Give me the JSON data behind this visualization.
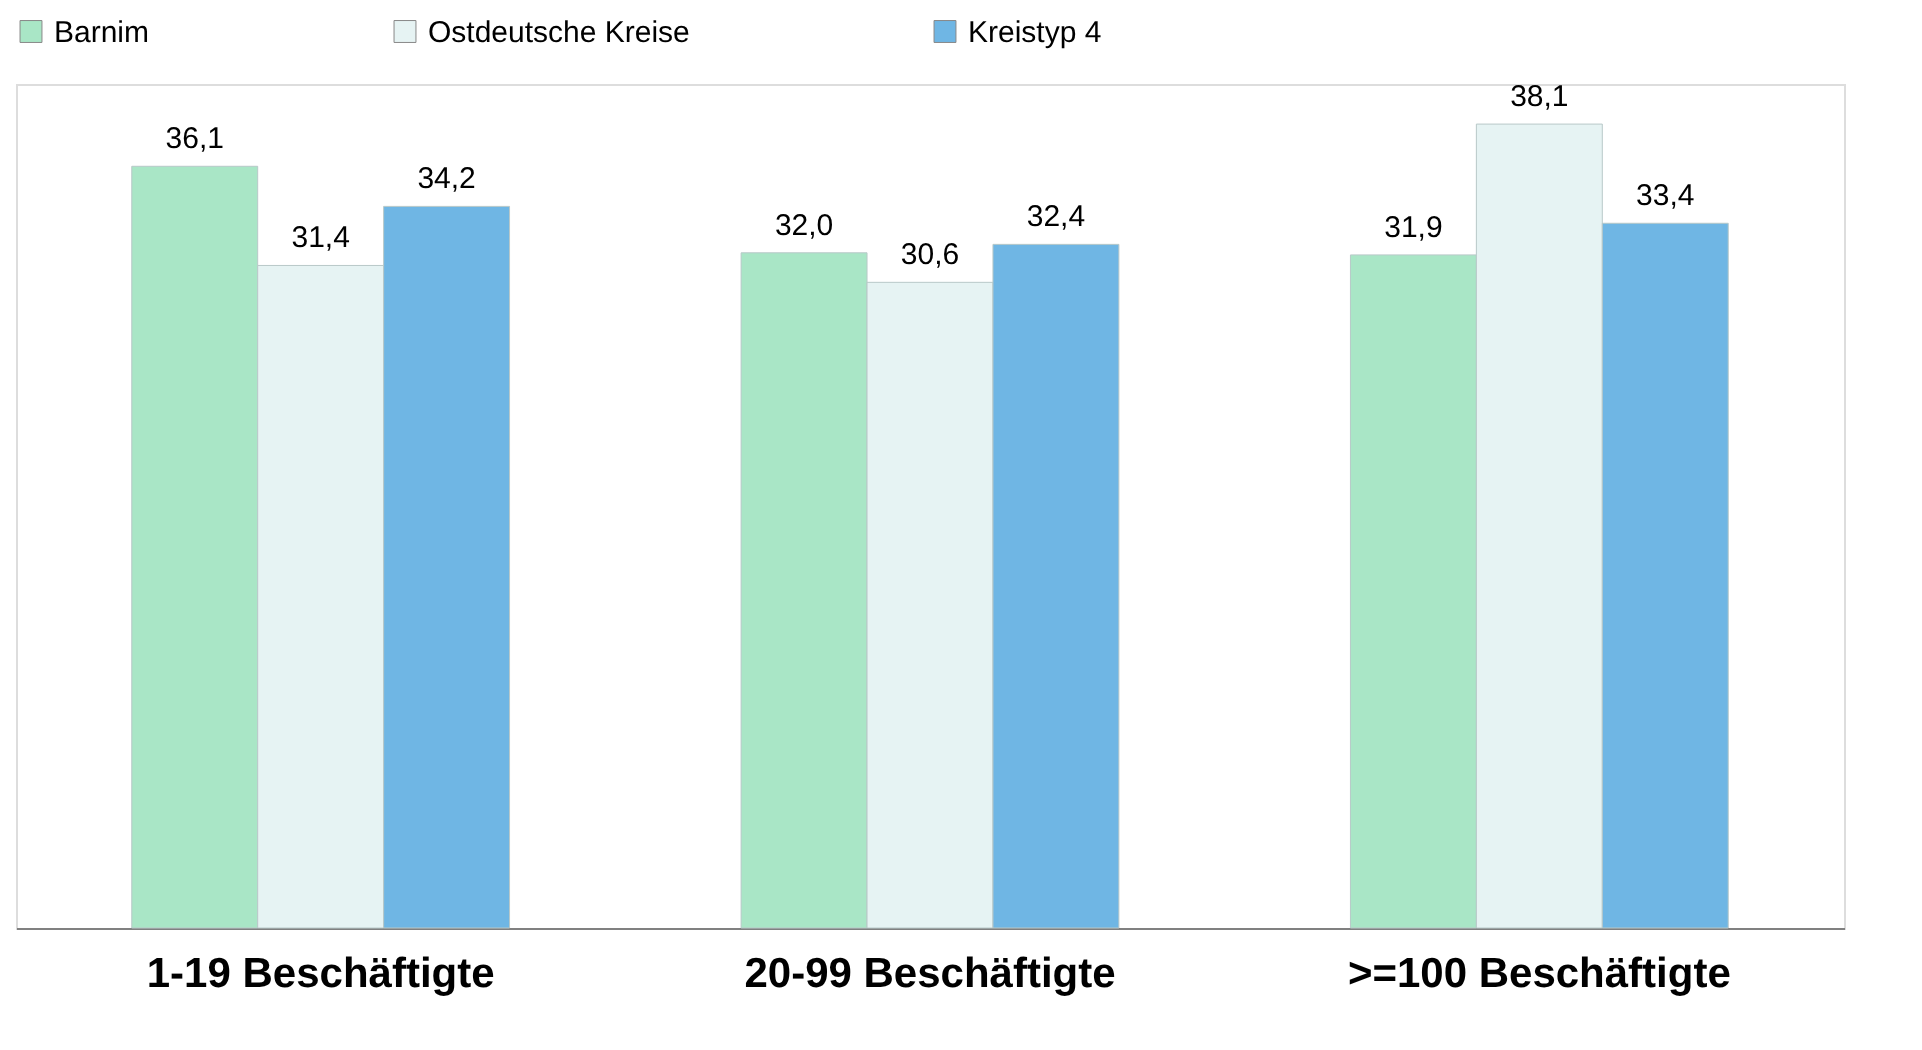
{
  "chart_data": {
    "type": "bar",
    "categories": [
      "1-19 Beschäftigte",
      "20-99 Beschäftigte",
      ">=100 Beschäftigte"
    ],
    "series": [
      {
        "name": "Barnim",
        "color": "#a9e6c6",
        "values": [
          36.1,
          32.0,
          31.9
        ],
        "value_labels": [
          "36,1",
          "32,0",
          "31,9"
        ]
      },
      {
        "name": "Ostdeutsche Kreise",
        "color": "#e6f3f3",
        "values": [
          31.4,
          30.6,
          38.1
        ],
        "value_labels": [
          "31,4",
          "30,6",
          "38,1"
        ]
      },
      {
        "name": "Kreistyp 4",
        "color": "#6fb6e4",
        "values": [
          34.2,
          32.4,
          33.4
        ],
        "value_labels": [
          "34,2",
          "32,4",
          "33,4"
        ]
      }
    ],
    "legend": "top"
  }
}
